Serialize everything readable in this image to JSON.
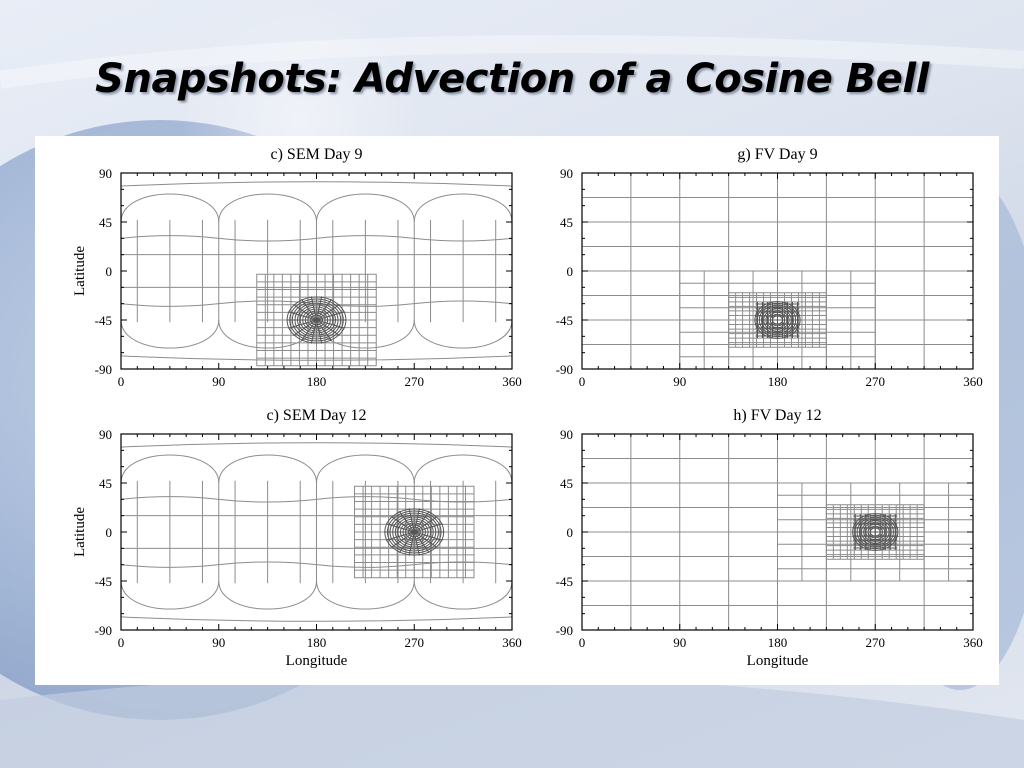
{
  "slide": {
    "title": "Snapshots: Advection of a Cosine Bell"
  },
  "colors": {
    "grid_line": "#8c8c8c",
    "axis": "#000000",
    "figure_background": "#ffffff"
  },
  "figure": {
    "panels": [
      {
        "id": "sem-day-9",
        "title": "c) SEM Day 9",
        "mesh": "spectral-element",
        "refinement_center": {
          "lon": 180,
          "lat": -45
        },
        "x_ticks": [
          "0",
          "90",
          "180",
          "270",
          "360"
        ],
        "y_ticks": [
          "90",
          "45",
          "0",
          "-45",
          "-90"
        ],
        "xlabel": "",
        "ylabel": "Latitude"
      },
      {
        "id": "fv-day-9",
        "title": "g) FV Day 9",
        "mesh": "finite-volume",
        "refinement_center": {
          "lon": 180,
          "lat": -45
        },
        "x_ticks": [
          "0",
          "90",
          "180",
          "270",
          "360"
        ],
        "y_ticks": [
          "90",
          "45",
          "0",
          "-45",
          "-90"
        ],
        "xlabel": "",
        "ylabel": ""
      },
      {
        "id": "sem-day-12",
        "title": "c) SEM Day 12",
        "mesh": "spectral-element",
        "refinement_center": {
          "lon": 270,
          "lat": 0
        },
        "x_ticks": [
          "0",
          "90",
          "180",
          "270",
          "360"
        ],
        "y_ticks": [
          "90",
          "45",
          "0",
          "-45",
          "-90"
        ],
        "xlabel": "Longitude",
        "ylabel": "Latitude"
      },
      {
        "id": "fv-day-12",
        "title": "h) FV Day 12",
        "mesh": "finite-volume",
        "refinement_center": {
          "lon": 270,
          "lat": 0
        },
        "x_ticks": [
          "0",
          "90",
          "180",
          "270",
          "360"
        ],
        "y_ticks": [
          "90",
          "45",
          "0",
          "-45",
          "-90"
        ],
        "xlabel": "Longitude",
        "ylabel": ""
      }
    ]
  }
}
